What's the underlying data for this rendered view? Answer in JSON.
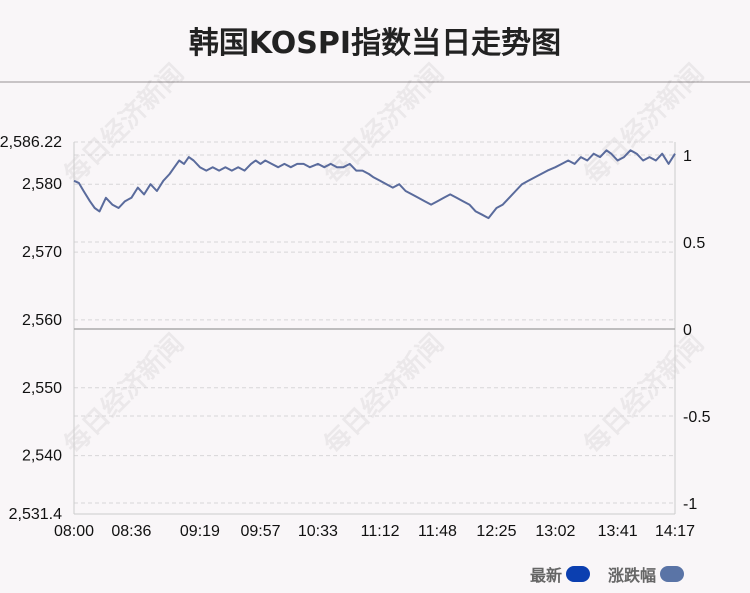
{
  "chart_data": {
    "type": "line",
    "title": "韩国KOSPI指数当日走势图",
    "xlabel": "",
    "ylabel": "",
    "x_ticks": [
      "08:00",
      "08:36",
      "09:19",
      "09:57",
      "10:33",
      "11:12",
      "11:48",
      "12:25",
      "13:02",
      "13:41",
      "14:17"
    ],
    "y_ticks_left": [
      "2,586.22",
      "2,580",
      "2,570",
      "2,560",
      "2,550",
      "2,540",
      "2,531.4"
    ],
    "y_ticks_right": [
      "1",
      "0.5",
      "0",
      "-0.5",
      "-1"
    ],
    "ylim": [
      2531.4,
      2586.22
    ],
    "y2lim": [
      -1,
      1
    ],
    "x": [
      "08:00",
      "08:03",
      "08:06",
      "08:10",
      "08:13",
      "08:16",
      "08:20",
      "08:24",
      "08:28",
      "08:32",
      "08:36",
      "08:40",
      "08:44",
      "08:48",
      "08:52",
      "08:56",
      "09:00",
      "09:03",
      "09:06",
      "09:09",
      "09:12",
      "09:15",
      "09:19",
      "09:23",
      "09:27",
      "09:31",
      "09:35",
      "09:39",
      "09:43",
      "09:47",
      "09:51",
      "09:54",
      "09:57",
      "10:00",
      "10:04",
      "10:08",
      "10:12",
      "10:16",
      "10:20",
      "10:24",
      "10:28",
      "10:33",
      "10:37",
      "10:41",
      "10:45",
      "10:49",
      "10:53",
      "10:57",
      "11:01",
      "11:05",
      "11:08",
      "11:12",
      "11:16",
      "11:20",
      "11:24",
      "11:28",
      "11:32",
      "11:36",
      "11:40",
      "11:44",
      "11:48",
      "11:52",
      "11:56",
      "12:00",
      "12:04",
      "12:08",
      "12:12",
      "12:16",
      "12:20",
      "12:25",
      "12:29",
      "12:33",
      "12:37",
      "12:41",
      "12:45",
      "12:49",
      "12:53",
      "12:57",
      "13:02",
      "13:06",
      "13:10",
      "13:14",
      "13:18",
      "13:22",
      "13:26",
      "13:30",
      "13:34",
      "13:37",
      "13:41",
      "13:45",
      "13:49",
      "13:53",
      "13:57",
      "14:01",
      "14:05",
      "14:09",
      "14:13",
      "14:17"
    ],
    "series": [
      {
        "values": [
          2580.5,
          2580.2,
          2579.0,
          2577.5,
          2576.5,
          2576.0,
          2578.0,
          2577.0,
          2576.5,
          2577.5,
          2578.0,
          2579.5,
          2578.5,
          2580.0,
          2579.0,
          2580.5,
          2581.5,
          2582.5,
          2583.5,
          2583.0,
          2584.0,
          2583.5,
          2582.5,
          2582.0,
          2582.5,
          2582.0,
          2582.5,
          2582.0,
          2582.5,
          2582.0,
          2583.0,
          2583.5,
          2583.0,
          2583.5,
          2583.0,
          2582.5,
          2583.0,
          2582.5,
          2583.0,
          2583.0,
          2582.5,
          2583.0,
          2582.5,
          2583.0,
          2582.5,
          2582.5,
          2583.0,
          2582.0,
          2582.0,
          2581.5,
          2581.0,
          2580.5,
          2580.0,
          2579.5,
          2580.0,
          2579.0,
          2578.5,
          2578.0,
          2577.5,
          2577.0,
          2577.5,
          2578.0,
          2578.5,
          2578.0,
          2577.5,
          2577.0,
          2576.0,
          2575.5,
          2575.0,
          2576.5,
          2577.0,
          2578.0,
          2579.0,
          2580.0,
          2580.5,
          2581.0,
          2581.5,
          2582.0,
          2582.5,
          2583.0,
          2583.5,
          2583.0,
          2584.0,
          2583.5,
          2584.5,
          2584.0,
          2585.0,
          2584.5,
          2583.5,
          2584.0,
          2585.0,
          2584.5,
          2583.5,
          2584.0,
          2583.5,
          2584.5,
          2583.0,
          2584.5
        ]
      }
    ],
    "grid": true,
    "legend_position": "bottom-right"
  },
  "legend": [
    {
      "label": "最新",
      "color": "#0b3fb0"
    },
    {
      "label": "涨跌幅",
      "color": "#5a74a6"
    }
  ],
  "watermark": "每日经济新闻",
  "colors": {
    "line": "#5a6b9c",
    "grid": "#d8d6d8",
    "zero_line": "#aaaaaa"
  }
}
